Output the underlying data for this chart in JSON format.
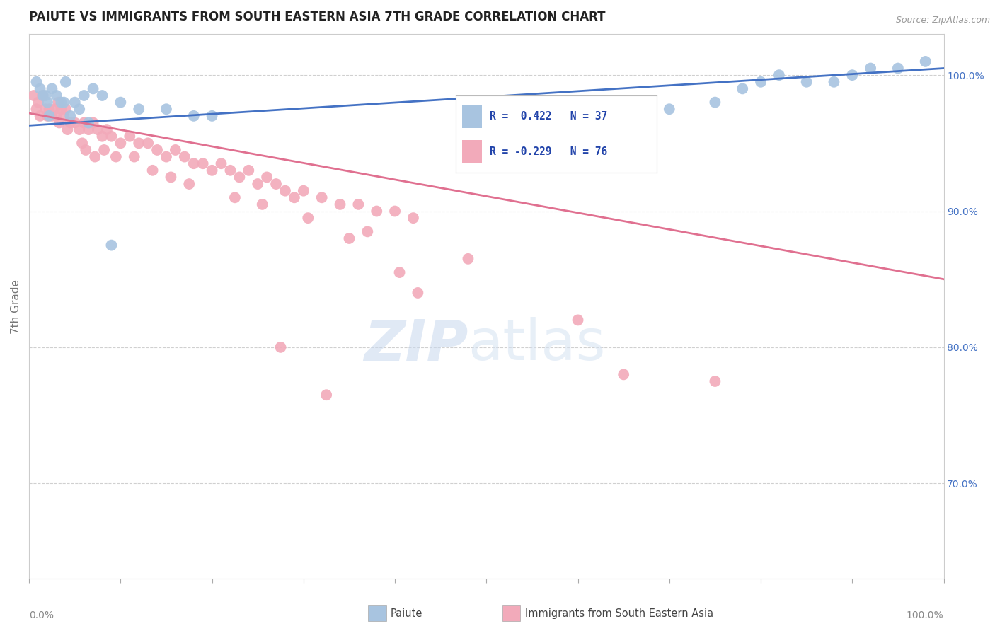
{
  "title": "PAIUTE VS IMMIGRANTS FROM SOUTH EASTERN ASIA 7TH GRADE CORRELATION CHART",
  "source_text": "Source: ZipAtlas.com",
  "ylabel": "7th Grade",
  "xlim": [
    0.0,
    100.0
  ],
  "ylim": [
    63.0,
    103.0
  ],
  "blue_color": "#A8C4E0",
  "pink_color": "#F2AABA",
  "blue_line_color": "#4472C4",
  "pink_line_color": "#E07090",
  "right_tick_color": "#4472C4",
  "legend_r1": "R =  0.422",
  "legend_n1": "N = 37",
  "legend_r2": "R = -0.229",
  "legend_n2": "N = 76",
  "legend_label1": "Paiute",
  "legend_label2": "Immigrants from South Eastern Asia",
  "blue_scatter_x": [
    0.8,
    1.2,
    1.5,
    2.0,
    2.5,
    3.0,
    3.5,
    4.0,
    5.0,
    6.0,
    7.0,
    8.0,
    10.0,
    12.0,
    15.0,
    18.0,
    5.5,
    2.2,
    3.8,
    1.8,
    4.5,
    6.5,
    9.0,
    20.0,
    55.0,
    65.0,
    70.0,
    75.0,
    78.0,
    80.0,
    82.0,
    85.0,
    88.0,
    90.0,
    92.0,
    95.0,
    98.0
  ],
  "blue_scatter_y": [
    99.5,
    99.0,
    98.5,
    98.0,
    99.0,
    98.5,
    98.0,
    99.5,
    98.0,
    98.5,
    99.0,
    98.5,
    98.0,
    97.5,
    97.5,
    97.0,
    97.5,
    97.0,
    98.0,
    98.5,
    97.0,
    96.5,
    87.5,
    97.0,
    96.5,
    97.0,
    97.5,
    98.0,
    99.0,
    99.5,
    100.0,
    99.5,
    99.5,
    100.0,
    100.5,
    100.5,
    101.0
  ],
  "pink_scatter_x": [
    0.5,
    0.8,
    1.0,
    1.2,
    1.5,
    1.8,
    2.0,
    2.2,
    2.5,
    2.8,
    3.0,
    3.2,
    3.5,
    3.8,
    4.0,
    4.5,
    5.0,
    5.5,
    6.0,
    6.5,
    7.0,
    7.5,
    8.0,
    8.5,
    9.0,
    10.0,
    11.0,
    12.0,
    13.0,
    14.0,
    15.0,
    16.0,
    17.0,
    18.0,
    19.0,
    20.0,
    21.0,
    22.0,
    23.0,
    24.0,
    25.0,
    26.0,
    27.0,
    28.0,
    29.0,
    30.0,
    32.0,
    34.0,
    36.0,
    38.0,
    40.0,
    42.0,
    3.3,
    4.2,
    5.8,
    6.2,
    7.2,
    8.2,
    9.5,
    11.5,
    13.5,
    15.5,
    17.5,
    22.5,
    25.5,
    30.5,
    35.0,
    37.0,
    40.5,
    42.5,
    48.0,
    60.0,
    65.0,
    75.0,
    27.5,
    32.5
  ],
  "pink_scatter_y": [
    98.5,
    97.5,
    98.0,
    97.0,
    98.5,
    97.5,
    97.0,
    97.5,
    97.0,
    97.5,
    97.0,
    98.0,
    97.5,
    97.0,
    97.5,
    96.5,
    96.5,
    96.0,
    96.5,
    96.0,
    96.5,
    96.0,
    95.5,
    96.0,
    95.5,
    95.0,
    95.5,
    95.0,
    95.0,
    94.5,
    94.0,
    94.5,
    94.0,
    93.5,
    93.5,
    93.0,
    93.5,
    93.0,
    92.5,
    93.0,
    92.0,
    92.5,
    92.0,
    91.5,
    91.0,
    91.5,
    91.0,
    90.5,
    90.5,
    90.0,
    90.0,
    89.5,
    96.5,
    96.0,
    95.0,
    94.5,
    94.0,
    94.5,
    94.0,
    94.0,
    93.0,
    92.5,
    92.0,
    91.0,
    90.5,
    89.5,
    88.0,
    88.5,
    85.5,
    84.0,
    86.5,
    82.0,
    78.0,
    77.5,
    80.0,
    76.5
  ]
}
